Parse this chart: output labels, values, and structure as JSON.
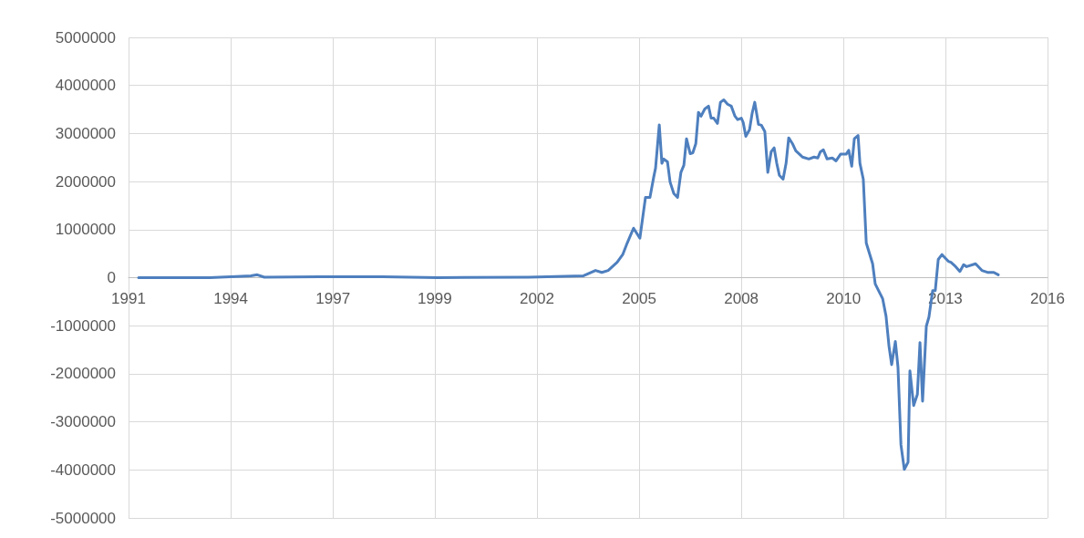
{
  "chart_data": {
    "type": "line",
    "x": [
      1991.47,
      1993.38,
      1993.94,
      1994.48,
      1994.65,
      1994.84,
      1996.31,
      1998.02,
      1999.49,
      2001.93,
      2003.4,
      2003.72,
      2003.89,
      2004.06,
      2004.3,
      2004.45,
      2004.57,
      2004.74,
      2004.91,
      2005.06,
      2005.18,
      2005.28,
      2005.33,
      2005.43,
      2005.5,
      2005.55,
      2005.65,
      2005.72,
      2005.82,
      2005.92,
      2006.01,
      2006.09,
      2006.16,
      2006.26,
      2006.33,
      2006.41,
      2006.48,
      2006.55,
      2006.65,
      2006.75,
      2006.82,
      2006.89,
      2006.99,
      2007.07,
      2007.16,
      2007.26,
      2007.36,
      2007.46,
      2007.53,
      2007.63,
      2007.68,
      2007.75,
      2007.85,
      2007.92,
      2007.99,
      2008.09,
      2008.17,
      2008.26,
      2008.34,
      2008.43,
      2008.51,
      2008.58,
      2008.65,
      2008.75,
      2008.83,
      2008.9,
      2009.0,
      2009.09,
      2009.19,
      2009.27,
      2009.44,
      2009.58,
      2009.68,
      2009.75,
      2009.83,
      2009.93,
      2010.07,
      2010.17,
      2010.29,
      2010.44,
      2010.51,
      2010.59,
      2010.66,
      2010.76,
      2010.81,
      2010.9,
      2010.98,
      2011.15,
      2011.22,
      2011.42,
      2011.51,
      2011.59,
      2011.66,
      2011.76,
      2011.83,
      2011.91,
      2012.0,
      2012.1,
      2012.15,
      2012.25,
      2012.35,
      2012.42,
      2012.49,
      2012.59,
      2012.66,
      2012.76,
      2012.83,
      2012.91,
      2013.01,
      2013.18,
      2013.25,
      2013.35,
      2013.49,
      2013.59,
      2013.67,
      2013.91,
      2014.08,
      2014.23,
      2014.4,
      2014.52
    ],
    "series": [
      {
        "color": "#4e7fbe",
        "values": [
          0,
          0,
          20000,
          40000,
          60000,
          10000,
          20000,
          20000,
          0,
          10000,
          40000,
          150000,
          110000,
          150000,
          320000,
          480000,
          720000,
          1030000,
          820000,
          1670000,
          1670000,
          2090000,
          2280000,
          3180000,
          2380000,
          2470000,
          2410000,
          1990000,
          1750000,
          1670000,
          2190000,
          2340000,
          2890000,
          2580000,
          2600000,
          2790000,
          3440000,
          3360000,
          3510000,
          3570000,
          3320000,
          3320000,
          3210000,
          3650000,
          3700000,
          3610000,
          3570000,
          3360000,
          3290000,
          3320000,
          3230000,
          2940000,
          3080000,
          3420000,
          3650000,
          3190000,
          3170000,
          3040000,
          2190000,
          2620000,
          2700000,
          2380000,
          2130000,
          2050000,
          2380000,
          2910000,
          2790000,
          2640000,
          2570000,
          2510000,
          2470000,
          2510000,
          2490000,
          2620000,
          2660000,
          2470000,
          2490000,
          2430000,
          2570000,
          2570000,
          2650000,
          2320000,
          2890000,
          2960000,
          2380000,
          2050000,
          720000,
          290000,
          -130000,
          -440000,
          -800000,
          -1430000,
          -1810000,
          -1330000,
          -1860000,
          -3480000,
          -3990000,
          -3840000,
          -1940000,
          -2660000,
          -2430000,
          -1350000,
          -2570000,
          -1010000,
          -820000,
          -270000,
          -270000,
          380000,
          480000,
          340000,
          320000,
          250000,
          130000,
          270000,
          230000,
          290000,
          150000,
          110000,
          110000,
          60000
        ]
      }
    ],
    "xlim": [
      1991.2,
      2015.84
    ],
    "xticks": [
      {
        "value": 1991.2,
        "label": "1991"
      },
      {
        "value": 1993.94,
        "label": "1994"
      },
      {
        "value": 1996.68,
        "label": "1997"
      },
      {
        "value": 1999.41,
        "label": "1999"
      },
      {
        "value": 2002.15,
        "label": "2002"
      },
      {
        "value": 2004.89,
        "label": "2005"
      },
      {
        "value": 2007.63,
        "label": "2008"
      },
      {
        "value": 2010.37,
        "label": "2010"
      },
      {
        "value": 2013.1,
        "label": "2013"
      },
      {
        "value": 2015.84,
        "label": "2016"
      }
    ],
    "ylim": [
      -5000000,
      5000000
    ],
    "yticks": [
      -5000000,
      -4000000,
      -3000000,
      -2000000,
      -1000000,
      0,
      1000000,
      2000000,
      3000000,
      4000000,
      5000000
    ],
    "grid": true,
    "marker": "none",
    "line_style": "solid"
  }
}
